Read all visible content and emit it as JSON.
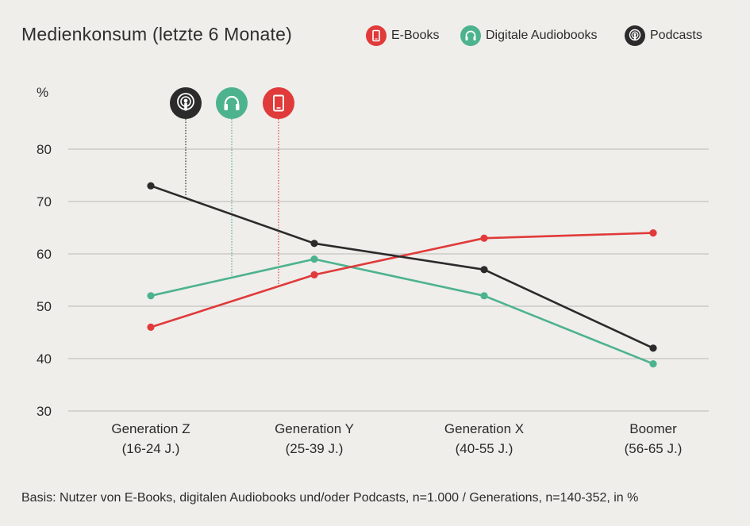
{
  "chart_data": {
    "type": "line",
    "title": "Medienkonsum (letzte 6 Monate)",
    "ylabel": "%",
    "ylim": [
      30,
      80
    ],
    "yticks": [
      "80",
      "70",
      "60",
      "50",
      "40",
      "30"
    ],
    "ytick_values": [
      80,
      70,
      60,
      50,
      40,
      30
    ],
    "categories": [
      {
        "line1": "Generation Z",
        "line2": "(16-24 J.)"
      },
      {
        "line1": "Generation Y",
        "line2": "(25-39 J.)"
      },
      {
        "line1": "Generation X",
        "line2": "(40-55 J.)"
      },
      {
        "line1": "Boomer",
        "line2": "(56-65 J.)"
      }
    ],
    "series": [
      {
        "name": "E-Books",
        "key": "ebooks",
        "color": "#e03a3a",
        "icon": "tablet-icon",
        "values": [
          46,
          56,
          63,
          64
        ]
      },
      {
        "name": "Digitale Audiobooks",
        "key": "audiobooks",
        "color": "#4db38e",
        "icon": "headphones-icon",
        "values": [
          52,
          59,
          52,
          39
        ]
      },
      {
        "name": "Podcasts",
        "key": "podcasts",
        "color": "#2b2b2b",
        "icon": "podcast-icon",
        "values": [
          73,
          62,
          57,
          42
        ]
      }
    ],
    "footnote": "Basis: Nutzer von E-Books, digitalen Audiobooks und/oder Podcasts, n=1.000 / Generations, n=140-352, in %"
  }
}
